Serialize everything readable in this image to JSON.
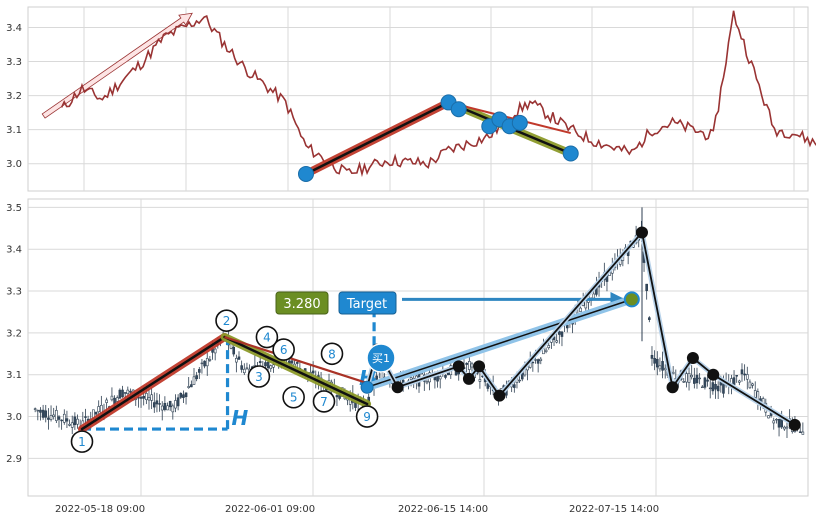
{
  "chart_data": [
    {
      "type": "line",
      "panel": "overview",
      "x": [
        "2022-05-16",
        "2022-05-18",
        "2022-05-20",
        "2022-05-24",
        "2022-05-26",
        "2022-05-30",
        "2022-06-01",
        "2022-06-03",
        "2022-06-07",
        "2022-06-09",
        "2022-06-13",
        "2022-06-15",
        "2022-06-17",
        "2022-06-21",
        "2022-06-23",
        "2022-06-27",
        "2022-06-29",
        "2022-07-01",
        "2022-07-05",
        "2022-07-07",
        "2022-07-11",
        "2022-07-13",
        "2022-07-15",
        "2022-07-19",
        "2022-07-21",
        "2022-07-25",
        "2022-07-27",
        "2022-07-29",
        "2022-08-02",
        "2022-08-04"
      ],
      "series": [
        {
          "values": [
            3.16,
            3.22,
            3.19,
            3.3,
            3.37,
            3.43,
            3.35,
            3.28,
            3.18,
            3.05,
            2.97,
            2.99,
            3.01,
            3.0,
            3.04,
            3.08,
            3.14,
            3.18,
            3.1,
            3.07,
            3.03,
            3.1,
            3.12,
            3.08,
            3.44,
            3.1,
            3.09,
            3.06,
            2.96,
            3.01
          ],
          "color": "#993333"
        }
      ],
      "ylim": [
        2.92,
        3.46
      ],
      "yticks": [
        "3.0",
        "3.1",
        "3.2",
        "3.3",
        "3.4"
      ],
      "annotation_arrow": {
        "from": [
          "2022-05-16",
          3.14
        ],
        "to": [
          "2022-05-30",
          3.43
        ]
      },
      "highlight_segments": [
        {
          "from": [
            "2022-06-09",
            2.97
          ],
          "to": [
            "2022-06-23",
            3.18
          ],
          "style": "red-black"
        },
        {
          "from": [
            "2022-06-23",
            3.18
          ],
          "to": [
            "2022-07-05",
            3.03
          ],
          "style": "olive-black"
        }
      ],
      "markers": [
        {
          "x": "2022-06-09",
          "y": 2.97
        },
        {
          "x": "2022-06-23",
          "y": 3.18
        },
        {
          "x": "2022-06-24",
          "y": 3.16
        },
        {
          "x": "2022-06-27",
          "y": 3.11
        },
        {
          "x": "2022-06-28",
          "y": 3.13
        },
        {
          "x": "2022-06-29",
          "y": 3.11
        },
        {
          "x": "2022-06-30",
          "y": 3.12
        },
        {
          "x": "2022-07-05",
          "y": 3.03
        }
      ]
    },
    {
      "type": "candlestick",
      "panel": "main",
      "x_tick_labels": [
        "2022-05-18 09:00",
        "2022-06-01 09:00",
        "2022-06-15 14:00",
        "2022-07-15 14:00"
      ],
      "ylim": [
        2.81,
        3.52
      ],
      "yticks": [
        "2.9",
        "3.0",
        "3.1",
        "3.2",
        "3.3",
        "3.4",
        "3.5"
      ],
      "wave_points": [
        {
          "label": "1",
          "date": "2022-05-18",
          "y": 2.94
        },
        {
          "label": "2",
          "date": "2022-06-01",
          "y": 3.21
        },
        {
          "label": "3",
          "date": "2022-06-03",
          "y": 3.11
        },
        {
          "label": "4",
          "date": "2022-06-03",
          "y": 3.19
        },
        {
          "label": "5",
          "date": "2022-06-07",
          "y": 3.07
        },
        {
          "label": "6",
          "date": "2022-06-07",
          "y": 3.16
        },
        {
          "label": "7",
          "date": "2022-06-09",
          "y": 3.06
        },
        {
          "label": "8",
          "date": "2022-06-09",
          "y": 3.15
        },
        {
          "label": "9",
          "date": "2022-06-15",
          "y": 3.0
        }
      ],
      "trend_lines": [
        {
          "from": [
            "2022-05-18",
            2.97
          ],
          "to": [
            "2022-06-01",
            3.19
          ],
          "style": "red-black"
        },
        {
          "from": [
            "2022-06-01",
            3.19
          ],
          "to": [
            "2022-06-15",
            3.03
          ],
          "style": "olive-black"
        },
        {
          "from": [
            "2022-06-01",
            3.19
          ],
          "to": [
            "2022-06-15",
            3.08
          ],
          "style": "red-thin"
        },
        {
          "from": [
            "2022-06-15",
            3.07
          ],
          "to": [
            "2022-07-11",
            3.28
          ],
          "style": "blue-black"
        }
      ],
      "zigzag": [
        {
          "date": "2022-06-15",
          "y": 3.07
        },
        {
          "date": "2022-06-16",
          "y": 3.16
        },
        {
          "date": "2022-06-18",
          "y": 3.07
        },
        {
          "date": "2022-06-24",
          "y": 3.12
        },
        {
          "date": "2022-06-25",
          "y": 3.09
        },
        {
          "date": "2022-06-26",
          "y": 3.12
        },
        {
          "date": "2022-06-28",
          "y": 3.05
        },
        {
          "date": "2022-07-12",
          "y": 3.44
        },
        {
          "date": "2022-07-15",
          "y": 3.07
        },
        {
          "date": "2022-07-17",
          "y": 3.14
        },
        {
          "date": "2022-07-19",
          "y": 3.1
        },
        {
          "date": "2022-07-27",
          "y": 2.98
        }
      ],
      "h_label": "H",
      "buy_label": "买1",
      "target_label": "Target",
      "target_value": "3.280",
      "target_price": 3.28,
      "candles_seed": 7
    }
  ]
}
